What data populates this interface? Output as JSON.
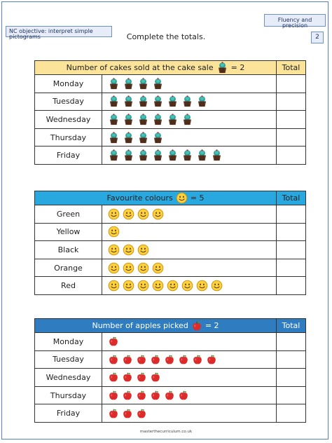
{
  "header": {
    "fluency_badge": "Fluency and precision",
    "objective": "NC objective: interpret simple pictograms",
    "page_number": "2",
    "instruction": "Complete the totals."
  },
  "tables": [
    {
      "id": "cakes",
      "title": "Number of cakes sold at the cake sale",
      "key_value": "= 2",
      "icon": "cupcake-icon",
      "total_label": "Total",
      "header_color": "#fce39a",
      "rows": [
        {
          "label": "Monday",
          "count": 4
        },
        {
          "label": "Tuesday",
          "count": 7
        },
        {
          "label": "Wednesday",
          "count": 6
        },
        {
          "label": "Thursday",
          "count": 4
        },
        {
          "label": "Friday",
          "count": 8
        }
      ]
    },
    {
      "id": "colours",
      "title": "Favourite colours",
      "key_value": "= 5",
      "icon": "smiley-icon",
      "total_label": "Total",
      "header_color": "#29a8e0",
      "rows": [
        {
          "label": "Green",
          "count": 4
        },
        {
          "label": "Yellow",
          "count": 1
        },
        {
          "label": "Black",
          "count": 3
        },
        {
          "label": "Orange",
          "count": 4
        },
        {
          "label": "Red",
          "count": 8
        }
      ]
    },
    {
      "id": "apples",
      "title": "Number of apples picked",
      "key_value": "= 2",
      "icon": "apple-icon",
      "total_label": "Total",
      "header_color": "#2f7dc0",
      "rows": [
        {
          "label": "Monday",
          "count": 1
        },
        {
          "label": "Tuesday",
          "count": 8
        },
        {
          "label": "Wednesday",
          "count": 4
        },
        {
          "label": "Thursday",
          "count": 6
        },
        {
          "label": "Friday",
          "count": 3
        }
      ]
    }
  ],
  "footer": "masterthecurriculum.co.uk"
}
